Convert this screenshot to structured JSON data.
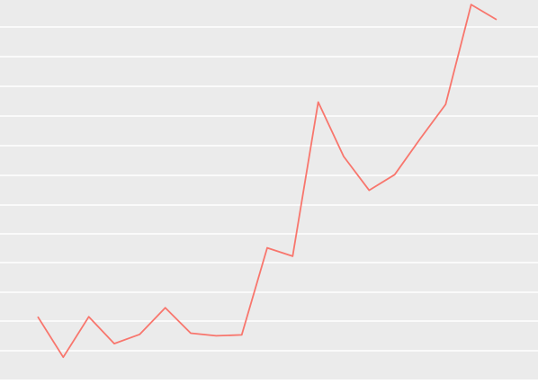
{
  "chart_data": {
    "type": "line",
    "title": "",
    "xlabel": "",
    "ylabel": "",
    "grid": true,
    "legend": "none",
    "x": [
      1,
      2,
      3,
      4,
      5,
      6,
      7,
      8,
      9,
      10,
      11,
      12,
      13,
      14,
      15,
      16,
      17,
      18,
      19
    ],
    "ylim": [
      0,
      12.5
    ],
    "series": [
      {
        "color": "#f8766d",
        "values": [
          1.55,
          0.15,
          1.55,
          0.62,
          0.94,
          1.86,
          0.98,
          0.89,
          0.92,
          3.93,
          3.64,
          8.97,
          7.09,
          5.92,
          6.46,
          7.7,
          8.89,
          12.34,
          11.82
        ]
      }
    ],
    "colors": {
      "panel_background": "#ebebeb",
      "gridline": "#ffffff"
    }
  }
}
